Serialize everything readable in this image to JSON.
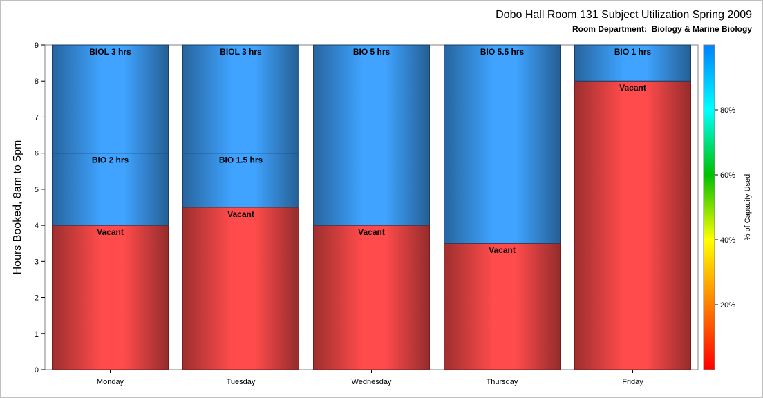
{
  "chart_data": {
    "type": "bar",
    "stacked": true,
    "title": "Dobo Hall Room 131 Subject Utilization Spring 2009",
    "subtitle": "Room Department:  Biology & Marine Biology",
    "xlabel": "",
    "ylabel": "Hours Booked, 8am to 5pm",
    "ylim": [
      0,
      9
    ],
    "yticks": [
      0,
      1,
      2,
      3,
      4,
      5,
      6,
      7,
      8,
      9
    ],
    "categories": [
      "Monday",
      "Tuesday",
      "Wednesday",
      "Thursday",
      "Friday"
    ],
    "bars": [
      {
        "category": "Monday",
        "segments": [
          {
            "label": "Vacant",
            "value": 4,
            "kind": "vacant"
          },
          {
            "label": "BIO 2 hrs",
            "value": 2,
            "kind": "booked"
          },
          {
            "label": "BIOL 3 hrs",
            "value": 3,
            "kind": "booked"
          }
        ]
      },
      {
        "category": "Tuesday",
        "segments": [
          {
            "label": "Vacant",
            "value": 4.5,
            "kind": "vacant"
          },
          {
            "label": "BIO 1.5 hrs",
            "value": 1.5,
            "kind": "booked"
          },
          {
            "label": "BIOL 3 hrs",
            "value": 3,
            "kind": "booked"
          }
        ]
      },
      {
        "category": "Wednesday",
        "segments": [
          {
            "label": "Vacant",
            "value": 4,
            "kind": "vacant"
          },
          {
            "label": "BIO 5 hrs",
            "value": 5,
            "kind": "booked"
          }
        ]
      },
      {
        "category": "Thursday",
        "segments": [
          {
            "label": "Vacant",
            "value": 3.5,
            "kind": "vacant"
          },
          {
            "label": "BIO 5.5 hrs",
            "value": 5.5,
            "kind": "booked"
          }
        ]
      },
      {
        "category": "Friday",
        "segments": [
          {
            "label": "Vacant",
            "value": 8,
            "kind": "vacant"
          },
          {
            "label": "BIO 1 hrs",
            "value": 1,
            "kind": "booked"
          }
        ]
      }
    ],
    "colors": {
      "vacant": "#ff4b4b",
      "booked": "#3fa3ff"
    },
    "colorbar": {
      "label": "% of Capacity Used",
      "ticks": [
        "20%",
        "40%",
        "60%",
        "80%"
      ],
      "tick_values": [
        20,
        40,
        60,
        80
      ],
      "range": [
        0,
        100
      ],
      "colors": [
        "#ff0000",
        "#ff7f00",
        "#ffff00",
        "#00c000",
        "#00ffff",
        "#0080ff"
      ]
    },
    "grid": false,
    "legend": "right"
  }
}
